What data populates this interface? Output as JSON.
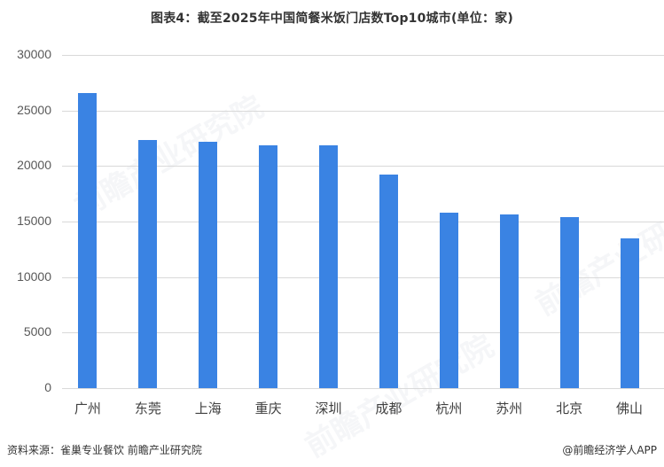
{
  "title": "图表4：截至2025年中国简餐米饭门店数Top10城市(单位：家)",
  "chart_data": {
    "type": "bar",
    "title": "图表4：截至2025年中国简餐米饭门店数Top10城市(单位：家)",
    "xlabel": "",
    "ylabel": "",
    "categories": [
      "广州",
      "东莞",
      "上海",
      "重庆",
      "深圳",
      "成都",
      "杭州",
      "苏州",
      "北京",
      "佛山"
    ],
    "values": [
      26570,
      22340,
      22180,
      21860,
      21860,
      19230,
      15800,
      15640,
      15400,
      13490
    ],
    "ylim": [
      0,
      30000
    ],
    "yticks": [
      "0",
      "5000",
      "10000",
      "15000",
      "20000",
      "25000",
      "30000"
    ],
    "grid": true,
    "legend": "none",
    "bar_color": "#3a83e3"
  },
  "footer": {
    "source": "资料来源：雀巢专业餐饮 前瞻产业研究院",
    "credit": "@前瞻经济学人APP"
  },
  "watermark": "前瞻产业研究院"
}
